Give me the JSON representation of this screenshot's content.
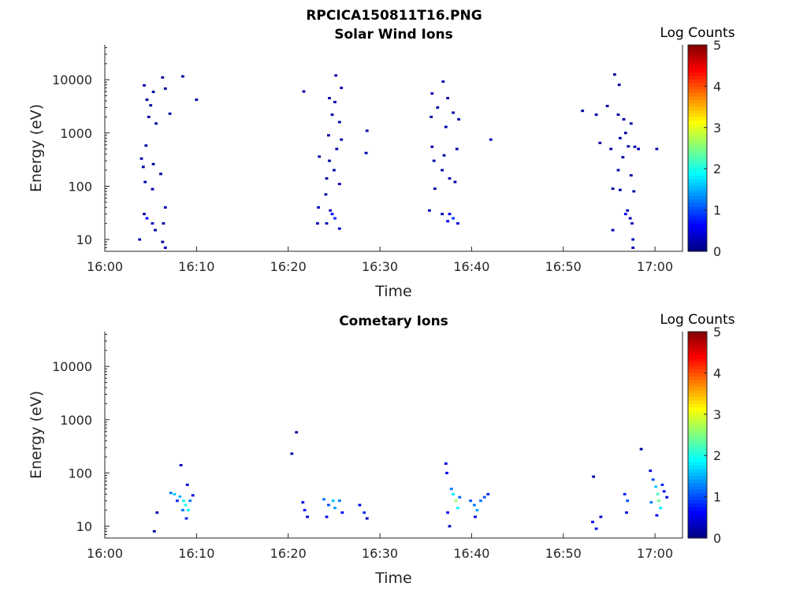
{
  "figure_title": "RPCICA150811T16.PNG",
  "colormap": [
    "#00007f",
    "#0000ff",
    "#007fff",
    "#00ffff",
    "#7fff7f",
    "#ffff00",
    "#ff7f00",
    "#ff0000",
    "#7f0000"
  ],
  "chart_data": [
    {
      "type": "heatmap",
      "title": "Solar Wind Ions",
      "xlabel": "Time",
      "ylabel": "Energy (eV)",
      "yscale": "log",
      "xlim": [
        "16:00",
        "17:03"
      ],
      "ylim": [
        6,
        45000
      ],
      "x_ticks": [
        "16:00",
        "16:10",
        "16:20",
        "16:30",
        "16:40",
        "16:50",
        "17:00"
      ],
      "y_ticks": [
        "10",
        "100",
        "1000",
        "10000"
      ],
      "colorbar": {
        "title": "Log Counts",
        "range": [
          0,
          5
        ],
        "ticks": [
          "0",
          "1",
          "2",
          "3",
          "4",
          "5"
        ]
      },
      "grid": false,
      "cells": [
        [
          "16:04.3",
          7800,
          0.2
        ],
        [
          "16:04.6",
          4200,
          0.2
        ],
        [
          "16:05.3",
          5900,
          0.2
        ],
        [
          "16:06.3",
          11000,
          0.2
        ],
        [
          "16:06.6",
          6800,
          0.2
        ],
        [
          "16:05.0",
          3300,
          0.2
        ],
        [
          "16:04.8",
          2000,
          0.2
        ],
        [
          "16:05.6",
          1500,
          0.2
        ],
        [
          "16:04.5",
          580,
          0.2
        ],
        [
          "16:04.0",
          330,
          0.2
        ],
        [
          "16:04.2",
          230,
          0.2
        ],
        [
          "16:05.3",
          260,
          0.2
        ],
        [
          "16:06.1",
          170,
          0.2
        ],
        [
          "16:04.4",
          120,
          0.2
        ],
        [
          "16:05.2",
          88,
          0.2
        ],
        [
          "16:07.1",
          2300,
          0.2
        ],
        [
          "16:08.5",
          11500,
          0.2
        ],
        [
          "16:10.0",
          4200,
          0.2
        ],
        [
          "16:04.3",
          30,
          0.2
        ],
        [
          "16:04.6",
          25,
          0.6
        ],
        [
          "16:05.2",
          20,
          0.3
        ],
        [
          "16:05.5",
          15,
          0.2
        ],
        [
          "16:06.4",
          20,
          0.2
        ],
        [
          "16:06.6",
          40,
          0.3
        ],
        [
          "16:03.8",
          10,
          0.3
        ],
        [
          "16:06.3",
          9,
          0.2
        ],
        [
          "16:06.6",
          7,
          0.3
        ],
        [
          "16:21.7",
          6000,
          0.2
        ],
        [
          "16:24.5",
          4500,
          0.2
        ],
        [
          "16:25.2",
          12000,
          0.2
        ],
        [
          "16:25.8",
          7000,
          0.2
        ],
        [
          "16:25.1",
          3800,
          0.2
        ],
        [
          "16:24.8",
          2200,
          0.2
        ],
        [
          "16:25.6",
          1600,
          0.2
        ],
        [
          "16:24.4",
          900,
          0.2
        ],
        [
          "16:25.8",
          750,
          0.2
        ],
        [
          "16:25.3",
          500,
          0.2
        ],
        [
          "16:23.4",
          360,
          0.2
        ],
        [
          "16:24.5",
          300,
          0.2
        ],
        [
          "16:25.0",
          200,
          0.2
        ],
        [
          "16:24.2",
          140,
          0.2
        ],
        [
          "16:25.6",
          110,
          0.2
        ],
        [
          "16:24.1",
          70,
          0.2
        ],
        [
          "16:28.6",
          1100,
          0.2
        ],
        [
          "16:28.5",
          420,
          0.2
        ],
        [
          "16:23.3",
          40,
          0.3
        ],
        [
          "16:24.6",
          35,
          0.3
        ],
        [
          "16:24.8",
          30,
          0.7
        ],
        [
          "16:25.1",
          25,
          0.8
        ],
        [
          "16:23.2",
          20,
          0.3
        ],
        [
          "16:24.2",
          20,
          0.3
        ],
        [
          "16:25.6",
          16,
          0.3
        ],
        [
          "16:35.7",
          5500,
          0.2
        ],
        [
          "16:36.9",
          9200,
          0.2
        ],
        [
          "16:37.4",
          4500,
          0.2
        ],
        [
          "16:36.3",
          3000,
          0.2
        ],
        [
          "16:38.0",
          2400,
          0.2
        ],
        [
          "16:35.6",
          2000,
          0.2
        ],
        [
          "16:38.6",
          1800,
          0.2
        ],
        [
          "16:37.2",
          1300,
          0.2
        ],
        [
          "16:35.7",
          550,
          0.2
        ],
        [
          "16:38.4",
          500,
          0.2
        ],
        [
          "16:37.0",
          380,
          0.2
        ],
        [
          "16:35.9",
          300,
          0.2
        ],
        [
          "16:36.8",
          200,
          0.2
        ],
        [
          "16:37.6",
          140,
          0.2
        ],
        [
          "16:38.2",
          120,
          0.2
        ],
        [
          "16:36.0",
          90,
          0.2
        ],
        [
          "16:42.1",
          750,
          0.3
        ],
        [
          "16:35.4",
          35,
          0.3
        ],
        [
          "16:36.8",
          30,
          0.3
        ],
        [
          "16:37.6",
          30,
          0.6
        ],
        [
          "16:38.0",
          25,
          0.9
        ],
        [
          "16:37.4",
          22,
          0.6
        ],
        [
          "16:38.5",
          20,
          0.4
        ],
        [
          "16:52.1",
          2600,
          0.2
        ],
        [
          "16:53.6",
          2200,
          0.2
        ],
        [
          "16:54.8",
          3200,
          0.2
        ],
        [
          "16:55.6",
          12500,
          0.2
        ],
        [
          "16:56.1",
          8000,
          0.2
        ],
        [
          "16:56.0",
          2200,
          0.2
        ],
        [
          "16:56.6",
          1800,
          0.2
        ],
        [
          "16:57.4",
          1500,
          0.2
        ],
        [
          "16:56.8",
          1000,
          0.2
        ],
        [
          "16:56.2",
          800,
          0.2
        ],
        [
          "16:57.1",
          560,
          0.2
        ],
        [
          "16:57.8",
          550,
          0.2
        ],
        [
          "16:55.2",
          500,
          0.2
        ],
        [
          "16:56.5",
          350,
          0.2
        ],
        [
          "16:56.0",
          200,
          0.2
        ],
        [
          "16:57.4",
          160,
          0.2
        ],
        [
          "16:58.2",
          500,
          0.2
        ],
        [
          "16:55.4",
          90,
          0.2
        ],
        [
          "16:56.2",
          85,
          0.2
        ],
        [
          "16:57.7",
          80,
          0.2
        ],
        [
          "17:00.2",
          500,
          0.2
        ],
        [
          "16:54.0",
          650,
          0.2
        ],
        [
          "16:57.0",
          35,
          0.3
        ],
        [
          "16:56.8",
          30,
          0.6
        ],
        [
          "16:57.3",
          25,
          0.4
        ],
        [
          "16:57.5",
          20,
          0.3
        ],
        [
          "16:55.4",
          15,
          0.3
        ],
        [
          "16:57.6",
          10,
          0.3
        ],
        [
          "16:57.6",
          7,
          0.3
        ]
      ]
    },
    {
      "type": "heatmap",
      "title": "Cometary Ions",
      "xlabel": "Time",
      "ylabel": "Energy (eV)",
      "yscale": "log",
      "xlim": [
        "16:00",
        "17:03"
      ],
      "ylim": [
        6,
        45000
      ],
      "x_ticks": [
        "16:00",
        "16:10",
        "16:20",
        "16:30",
        "16:40",
        "16:50",
        "17:00"
      ],
      "y_ticks": [
        "10",
        "100",
        "1000",
        "10000"
      ],
      "colorbar": {
        "title": "Log Counts",
        "range": [
          0,
          5
        ],
        "ticks": [
          "0",
          "1",
          "2",
          "3",
          "4",
          "5"
        ]
      },
      "grid": false,
      "cells": [
        [
          "16:05.4",
          8,
          0.2
        ],
        [
          "16:05.7",
          18,
          0.2
        ],
        [
          "16:07.2",
          42,
          1.2
        ],
        [
          "16:07.6",
          40,
          1.6
        ],
        [
          "16:07.9",
          30,
          0.8
        ],
        [
          "16:08.2",
          36,
          1.5
        ],
        [
          "16:08.6",
          30,
          1.9
        ],
        [
          "16:08.8",
          25,
          2.0
        ],
        [
          "16:09.1",
          20,
          1.8
        ],
        [
          "16:09.3",
          30,
          1.2
        ],
        [
          "16:08.9",
          14,
          0.8
        ],
        [
          "16:08.5",
          20,
          1.2
        ],
        [
          "16:08.3",
          140,
          0.3
        ],
        [
          "16:09.0",
          60,
          0.4
        ],
        [
          "16:09.6",
          38,
          0.5
        ],
        [
          "16:20.4",
          230,
          0.2
        ],
        [
          "16:20.9",
          580,
          0.2
        ],
        [
          "16:21.6",
          28,
          0.5
        ],
        [
          "16:21.8",
          20,
          0.7
        ],
        [
          "16:22.1",
          15,
          0.4
        ],
        [
          "16:23.9",
          32,
          1.2
        ],
        [
          "16:24.4",
          25,
          1.0
        ],
        [
          "16:24.9",
          30,
          1.6
        ],
        [
          "16:25.1",
          22,
          1.4
        ],
        [
          "16:25.6",
          30,
          1.2
        ],
        [
          "16:24.2",
          15,
          0.5
        ],
        [
          "16:25.9",
          18,
          0.6
        ],
        [
          "16:27.8",
          25,
          0.5
        ],
        [
          "16:28.3",
          18,
          0.8
        ],
        [
          "16:28.6",
          14,
          0.4
        ],
        [
          "16:37.2",
          150,
          0.5
        ],
        [
          "16:37.3",
          100,
          0.6
        ],
        [
          "16:37.8",
          50,
          1.2
        ],
        [
          "16:38.0",
          40,
          1.8
        ],
        [
          "16:38.3",
          30,
          2.6
        ],
        [
          "16:38.5",
          22,
          1.9
        ],
        [
          "16:38.7",
          35,
          1.1
        ],
        [
          "16:37.4",
          18,
          0.6
        ],
        [
          "16:37.6",
          10,
          0.3
        ],
        [
          "16:39.9",
          30,
          1.0
        ],
        [
          "16:40.3",
          25,
          1.2
        ],
        [
          "16:40.6",
          20,
          1.4
        ],
        [
          "16:41.0",
          30,
          1.2
        ],
        [
          "16:41.4",
          35,
          1.0
        ],
        [
          "16:41.8",
          40,
          0.8
        ],
        [
          "16:40.4",
          15,
          0.5
        ],
        [
          "16:53.3",
          85,
          0.2
        ],
        [
          "16:53.2",
          12,
          0.6
        ],
        [
          "16:53.6",
          9,
          0.5
        ],
        [
          "16:54.1",
          15,
          0.4
        ],
        [
          "16:56.7",
          40,
          0.8
        ],
        [
          "16:57.0",
          30,
          1.0
        ],
        [
          "16:56.9",
          18,
          0.5
        ],
        [
          "16:58.5",
          280,
          0.2
        ],
        [
          "16:59.5",
          110,
          0.5
        ],
        [
          "16:59.8",
          75,
          1.0
        ],
        [
          "17:00.1",
          55,
          1.6
        ],
        [
          "17:00.3",
          40,
          2.2
        ],
        [
          "17:00.4",
          30,
          2.4
        ],
        [
          "17:00.6",
          22,
          1.8
        ],
        [
          "17:00.8",
          60,
          0.8
        ],
        [
          "17:01.0",
          45,
          0.7
        ],
        [
          "17:01.3",
          35,
          0.5
        ],
        [
          "16:59.6",
          28,
          1.2
        ],
        [
          "17:00.2",
          16,
          0.6
        ]
      ]
    }
  ]
}
